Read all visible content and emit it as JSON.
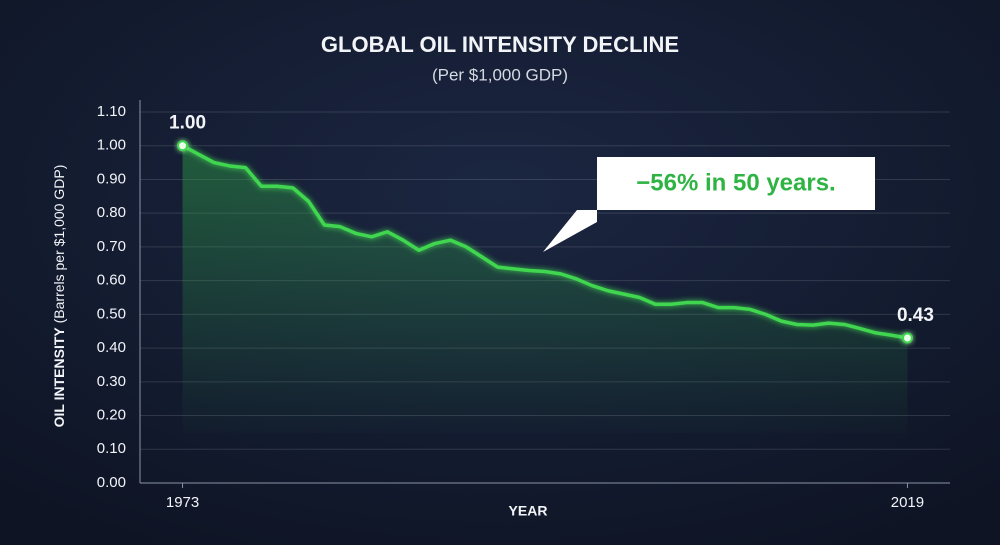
{
  "chart_data": {
    "type": "line",
    "title": "GLOBAL OIL INTENSITY  DECLINE",
    "subtitle": "(Per $1,000 GDP)",
    "ylabel": "OIL INTENSITY",
    "ylabel_note": "(Barrels per $1,000 GDP)",
    "xlabel": "YEAR",
    "annotation": "−56% in 50 years.",
    "color": "#3fd64f",
    "x": [
      1973,
      1974,
      1975,
      1976,
      1977,
      1978,
      1979,
      1980,
      1981,
      1982,
      1983,
      1984,
      1985,
      1986,
      1987,
      1988,
      1989,
      1990,
      1991,
      1992,
      1993,
      1994,
      1995,
      1996,
      1997,
      1998,
      1999,
      2000,
      2001,
      2002,
      2003,
      2004,
      2005,
      2006,
      2007,
      2008,
      2009,
      2010,
      2011,
      2012,
      2013,
      2014,
      2015,
      2016,
      2017,
      2018,
      2019
    ],
    "values": [
      1.0,
      0.975,
      0.95,
      0.94,
      0.935,
      0.88,
      0.88,
      0.875,
      0.835,
      0.765,
      0.76,
      0.74,
      0.73,
      0.745,
      0.72,
      0.69,
      0.71,
      0.72,
      0.7,
      0.67,
      0.64,
      0.635,
      0.63,
      0.627,
      0.62,
      0.605,
      0.585,
      0.57,
      0.56,
      0.55,
      0.53,
      0.53,
      0.535,
      0.535,
      0.52,
      0.52,
      0.515,
      0.5,
      0.48,
      0.47,
      0.468,
      0.474,
      0.47,
      0.458,
      0.445,
      0.438,
      0.43
    ],
    "value_labels": [
      "1.00",
      null,
      null,
      null,
      null,
      null,
      null,
      null,
      null,
      null,
      null,
      null,
      null,
      null,
      null,
      null,
      null,
      null,
      null,
      null,
      null,
      null,
      null,
      null,
      null,
      null,
      null,
      null,
      null,
      null,
      null,
      null,
      null,
      null,
      null,
      null,
      null,
      null,
      null,
      null,
      null,
      null,
      null,
      null,
      null,
      null,
      "0.43"
    ],
    "xlim": [
      1970.3,
      2021.7
    ],
    "xticks": [
      1973,
      2019
    ],
    "ylim": [
      0,
      1.1
    ],
    "yticks": [
      {
        "value": 0,
        "label": "0.00"
      },
      {
        "value": 0.1,
        "label": "0.10"
      },
      {
        "value": 0.2,
        "label": "0.20"
      },
      {
        "value": 0.3,
        "label": "0.30"
      },
      {
        "value": 0.4,
        "label": "0.40"
      },
      {
        "value": 0.5,
        "label": "0.50"
      },
      {
        "value": 0.6,
        "label": "0.60"
      },
      {
        "value": 0.7,
        "label": "0.70"
      },
      {
        "value": 0.8,
        "label": "0.80"
      },
      {
        "value": 0.9,
        "label": "0.90"
      },
      {
        "value": 1,
        "label": "1.00"
      },
      {
        "value": 1.1,
        "label": "1.10"
      }
    ],
    "grid": true
  }
}
